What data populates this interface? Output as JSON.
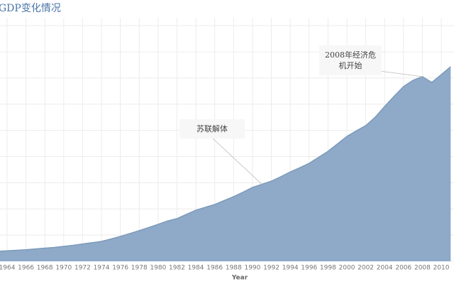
{
  "chart_data": {
    "type": "area",
    "title": "GDP变化情况",
    "x_label": "Year",
    "x": [
      1963,
      1964,
      1965,
      1966,
      1967,
      1968,
      1969,
      1970,
      1971,
      1972,
      1973,
      1974,
      1975,
      1976,
      1977,
      1978,
      1979,
      1980,
      1981,
      1982,
      1983,
      1984,
      1985,
      1986,
      1987,
      1988,
      1989,
      1990,
      1991,
      1992,
      1993,
      1994,
      1995,
      1996,
      1997,
      1998,
      1999,
      2000,
      2001,
      2002,
      2003,
      2004,
      2005,
      2006,
      2007,
      2008,
      2009,
      2010,
      2011
    ],
    "values": [
      3.8,
      4.0,
      4.2,
      4.4,
      4.7,
      5.0,
      5.3,
      5.7,
      6.1,
      6.6,
      7.1,
      7.6,
      8.5,
      9.5,
      10.6,
      11.7,
      12.9,
      14.1,
      15.4,
      16.3,
      17.9,
      19.5,
      20.6,
      21.7,
      23.2,
      24.7,
      26.4,
      28.2,
      29.4,
      30.6,
      32.3,
      34.1,
      35.7,
      37.4,
      39.7,
      42.0,
      44.8,
      47.7,
      49.8,
      51.8,
      55.0,
      59.1,
      63.0,
      66.7,
      69.1,
      70.5,
      68.3,
      71.3,
      74.3
    ],
    "color": "#8eaac8",
    "line_color": "#7c9aba",
    "xlim": [
      1963.25,
      2011.35
    ],
    "xticks": [
      1964,
      1966,
      1968,
      1970,
      1972,
      1974,
      1976,
      1978,
      1980,
      1982,
      1984,
      1986,
      1988,
      1990,
      1992,
      1994,
      1996,
      1998,
      2000,
      2002,
      2004,
      2006,
      2008,
      2010
    ],
    "ylim": [
      0,
      93
    ],
    "yticks": [
      0,
      10,
      20,
      30,
      40,
      50,
      60,
      70,
      80,
      90
    ],
    "grid": true,
    "annotations": [
      {
        "text": "苏联解体",
        "x": 1991
      },
      {
        "text": "2008年经济危机开始",
        "x": 2008
      }
    ]
  }
}
